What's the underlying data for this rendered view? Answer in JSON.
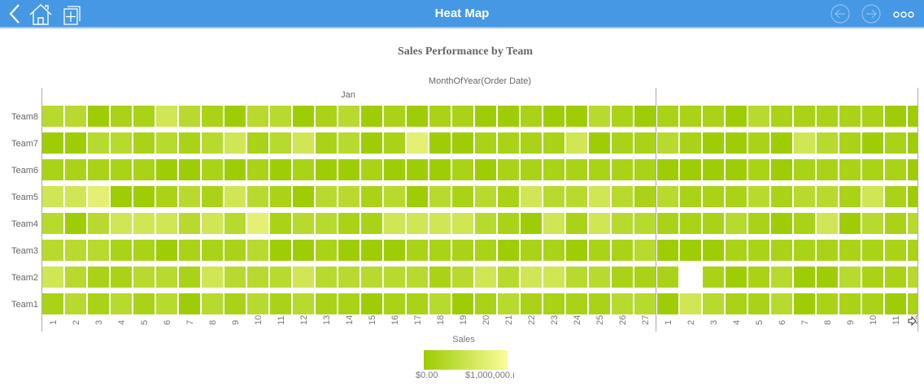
{
  "topbar": {
    "title": "Heat Map",
    "icons": [
      "back-icon",
      "home-icon",
      "add-page-icon",
      "previous-icon",
      "next-icon",
      "more-icon"
    ],
    "color": "#4698e5"
  },
  "chart_data": {
    "type": "heatmap",
    "title": "Sales Performance by Team",
    "xlabel": "MonthOfYear(Order Date)",
    "ylabel": "",
    "x_groups": [
      {
        "label": "Jan",
        "days": [
          "1",
          "2",
          "3",
          "4",
          "5",
          "6",
          "7",
          "8",
          "9",
          "10",
          "11",
          "12",
          "13",
          "14",
          "15",
          "16",
          "17",
          "18",
          "19",
          "20",
          "21",
          "22",
          "23",
          "24",
          "25",
          "26",
          "27"
        ]
      },
      {
        "label": "",
        "days": [
          "1",
          "2",
          "3",
          "4",
          "5",
          "6",
          "7",
          "8",
          "9",
          "10",
          "11",
          "12"
        ]
      }
    ],
    "y_categories": [
      "Team8",
      "Team7",
      "Team6",
      "Team5",
      "Team4",
      "Team3",
      "Team2",
      "Team1"
    ],
    "values": [
      [
        300000,
        300000,
        30000,
        150000,
        150000,
        550000,
        300000,
        150000,
        30000,
        300000,
        300000,
        30000,
        150000,
        300000,
        30000,
        150000,
        30000,
        150000,
        150000,
        30000,
        30000,
        150000,
        30000,
        30000,
        300000,
        150000,
        30000,
        150000,
        150000,
        150000,
        30000,
        300000,
        150000,
        150000,
        150000,
        150000,
        150000,
        30000,
        30000
      ],
      [
        30000,
        30000,
        300000,
        300000,
        150000,
        300000,
        150000,
        300000,
        550000,
        150000,
        300000,
        550000,
        150000,
        300000,
        30000,
        150000,
        750000,
        30000,
        30000,
        150000,
        150000,
        150000,
        150000,
        550000,
        30000,
        150000,
        150000,
        300000,
        150000,
        30000,
        30000,
        150000,
        30000,
        550000,
        300000,
        150000,
        30000,
        150000,
        30000
      ],
      [
        150000,
        150000,
        150000,
        150000,
        150000,
        30000,
        30000,
        150000,
        30000,
        150000,
        30000,
        150000,
        30000,
        30000,
        150000,
        30000,
        30000,
        30000,
        150000,
        30000,
        150000,
        150000,
        150000,
        150000,
        150000,
        150000,
        150000,
        30000,
        30000,
        30000,
        30000,
        150000,
        30000,
        150000,
        150000,
        150000,
        150000,
        150000,
        30000
      ],
      [
        550000,
        550000,
        750000,
        30000,
        30000,
        150000,
        300000,
        150000,
        550000,
        300000,
        150000,
        30000,
        300000,
        300000,
        150000,
        300000,
        30000,
        300000,
        150000,
        300000,
        150000,
        550000,
        300000,
        300000,
        550000,
        300000,
        150000,
        300000,
        150000,
        150000,
        150000,
        300000,
        150000,
        300000,
        300000,
        150000,
        550000,
        150000,
        30000
      ],
      [
        300000,
        30000,
        300000,
        550000,
        550000,
        550000,
        300000,
        550000,
        300000,
        750000,
        150000,
        300000,
        300000,
        150000,
        150000,
        550000,
        550000,
        550000,
        550000,
        300000,
        150000,
        30000,
        550000,
        150000,
        550000,
        300000,
        300000,
        150000,
        150000,
        150000,
        300000,
        150000,
        30000,
        150000,
        550000,
        30000,
        300000,
        150000,
        300000
      ],
      [
        300000,
        300000,
        300000,
        150000,
        150000,
        30000,
        150000,
        150000,
        150000,
        300000,
        30000,
        30000,
        150000,
        30000,
        30000,
        30000,
        150000,
        150000,
        150000,
        150000,
        30000,
        150000,
        150000,
        30000,
        150000,
        150000,
        300000,
        30000,
        30000,
        30000,
        150000,
        150000,
        150000,
        150000,
        150000,
        150000,
        150000,
        150000,
        150000
      ],
      [
        550000,
        300000,
        150000,
        150000,
        300000,
        300000,
        150000,
        550000,
        300000,
        300000,
        300000,
        550000,
        300000,
        300000,
        300000,
        300000,
        300000,
        150000,
        300000,
        550000,
        300000,
        550000,
        550000,
        300000,
        300000,
        150000,
        150000,
        150000,
        null,
        150000,
        30000,
        150000,
        300000,
        30000,
        30000,
        300000,
        150000,
        150000,
        300000
      ],
      [
        150000,
        300000,
        150000,
        300000,
        150000,
        300000,
        30000,
        300000,
        150000,
        300000,
        150000,
        300000,
        150000,
        150000,
        30000,
        150000,
        150000,
        300000,
        30000,
        150000,
        300000,
        150000,
        150000,
        150000,
        150000,
        300000,
        300000,
        30000,
        550000,
        300000,
        150000,
        150000,
        300000,
        30000,
        150000,
        150000,
        150000,
        30000,
        150000
      ]
    ],
    "color_scale": {
      "title": "Sales",
      "min": 0,
      "max": 1000000,
      "min_label": "$0.00",
      "max_label": "$1,000,000.(",
      "min_color": "#9ccc00",
      "max_color": "#fafc9a"
    },
    "legend_position": "bottom"
  }
}
